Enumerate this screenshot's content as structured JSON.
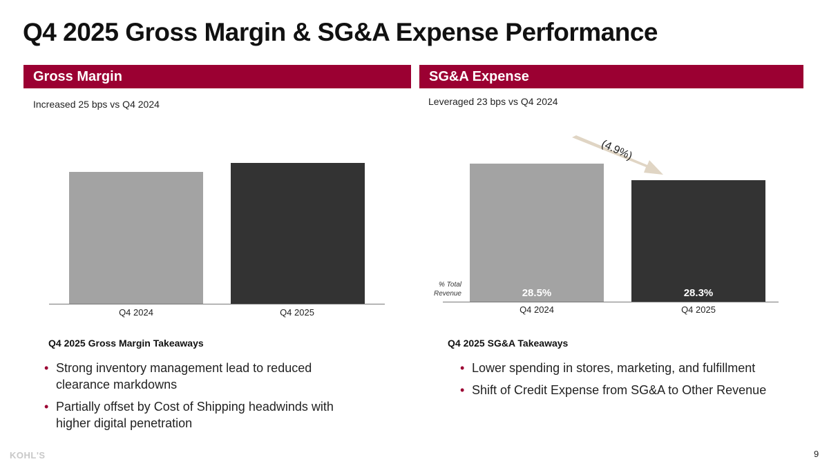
{
  "title": "Q4 2025 Gross Margin & SG&A Expense Performance",
  "colors": {
    "accent": "#9b0032",
    "bar_2024": "#a3a3a3",
    "bar_2025": "#333333",
    "arrow": "#e0d5c4"
  },
  "gross_margin": {
    "header": "Gross Margin",
    "subtitle": "Increased 25 bps vs Q4 2024",
    "takeaways_title": "Q4 2025 Gross Margin Takeaways",
    "bullets": [
      "Strong inventory management lead to reduced clearance markdowns",
      "Partially offset by Cost of Shipping headwinds with higher digital penetration"
    ]
  },
  "sga": {
    "header": "SG&A Expense",
    "subtitle": "Leveraged 23 bps vs Q4 2024",
    "takeaways_title": "Q4 2025 SG&A Takeaways",
    "bullets": [
      "Lower spending in stores, marketing, and fulfillment",
      "Shift of Credit Expense from SG&A to Other Revenue"
    ]
  },
  "chart_data": [
    {
      "type": "bar",
      "categories": [
        "Q4 2024",
        "Q4 2025"
      ],
      "values": [
        null,
        null
      ],
      "grid": false
    },
    {
      "type": "bar",
      "categories": [
        "Q4 2024",
        "Q4 2025"
      ],
      "data_labels": [
        "28.5%",
        "28.3%"
      ],
      "row_label": "% Total Revenue",
      "annotation": "(4.9%)",
      "grid": false
    }
  ],
  "footer": {
    "logo": "KOHL'S",
    "page_number": "9"
  }
}
